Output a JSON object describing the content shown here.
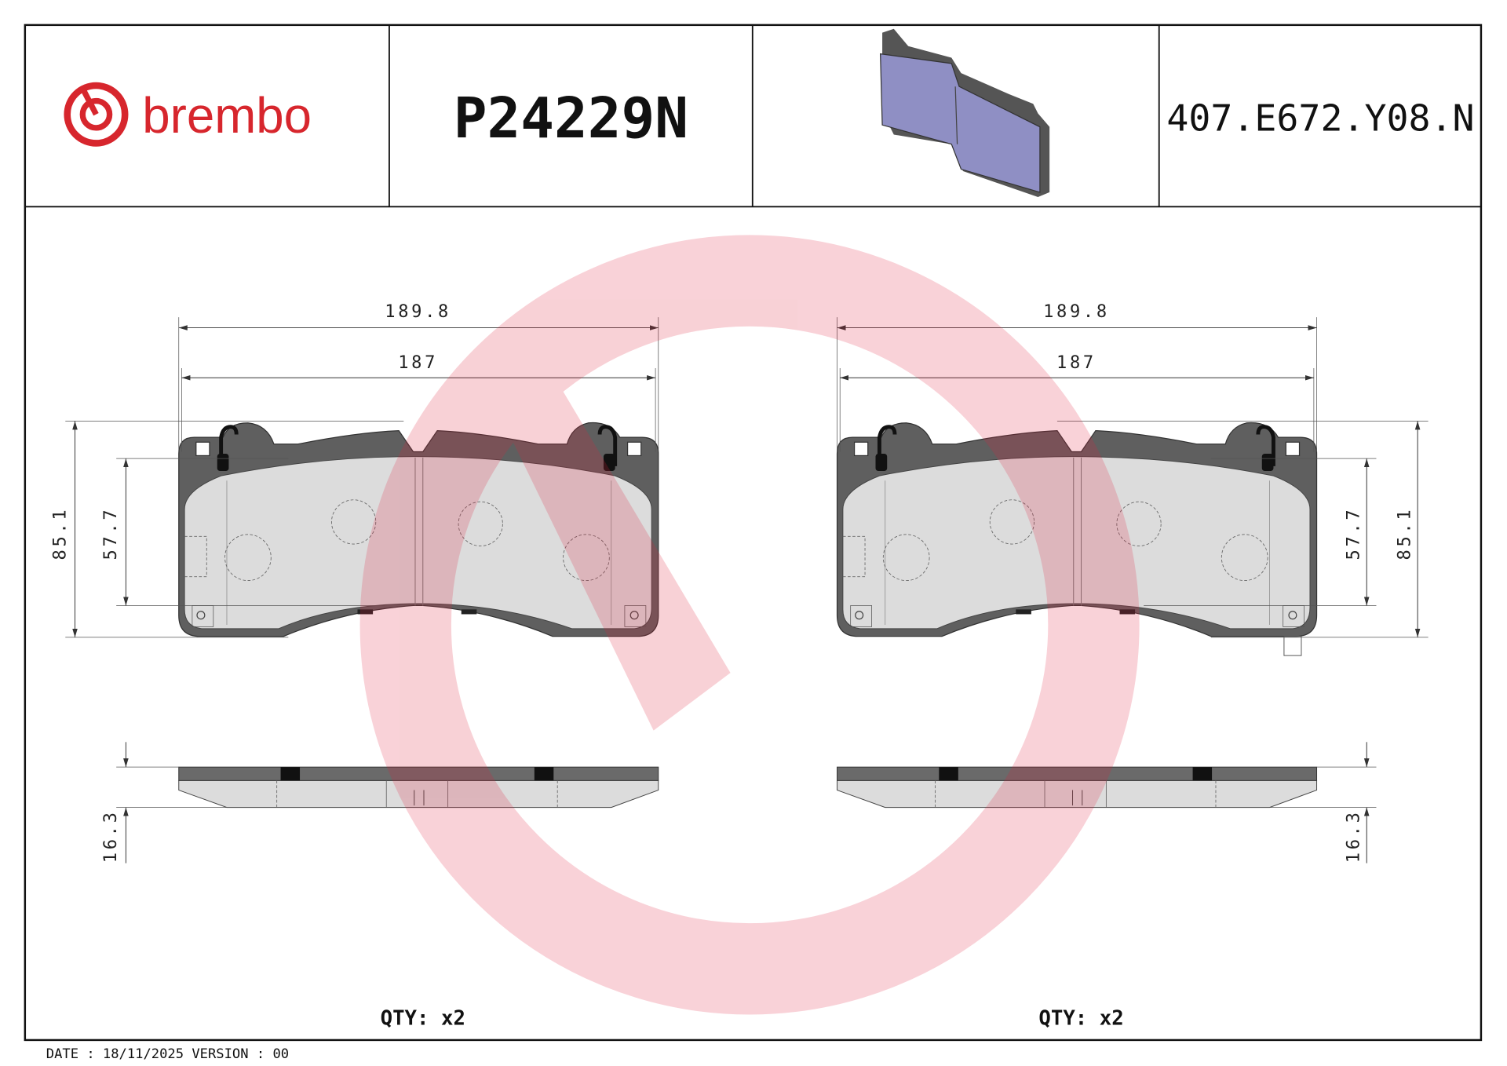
{
  "header": {
    "brand": "brembo",
    "part_number": "P24229N",
    "code": "407.E672.Y08.N"
  },
  "views": [
    {
      "width_outer": 189.8,
      "width_inner": 187,
      "height_outer": 85.1,
      "height_inner": 57.7,
      "thickness": 16.3,
      "quantity": "QTY:  x2"
    },
    {
      "width_outer": 189.8,
      "width_inner": 187,
      "height_outer": 85.1,
      "height_inner": 57.7,
      "thickness": 16.3,
      "quantity": "QTY:  x2"
    }
  ],
  "footer": {
    "date": "DATE : 18/11/2025 VERSION : 00"
  }
}
